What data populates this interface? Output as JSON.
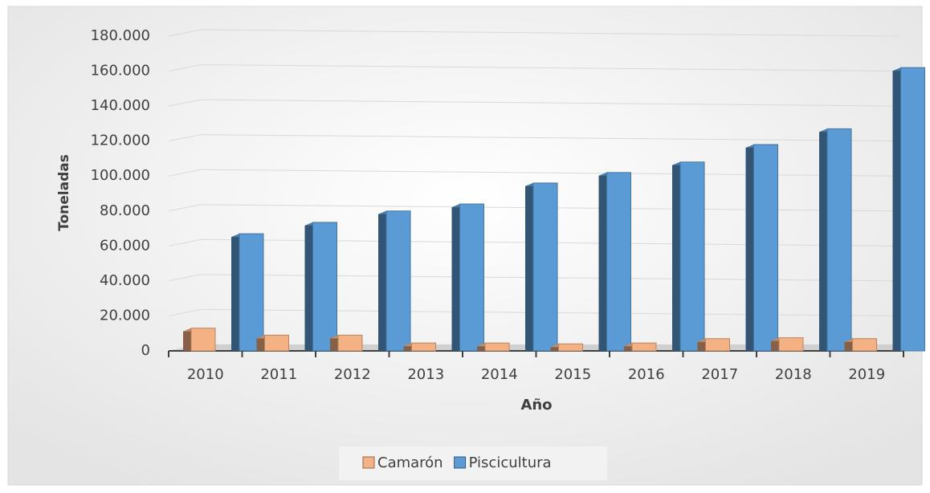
{
  "chart_data": {
    "type": "bar",
    "y_label": "Toneladas",
    "x_label": "Año",
    "categories": [
      "2010",
      "2011",
      "2012",
      "2013",
      "2014",
      "2015",
      "2016",
      "2017",
      "2018",
      "2019"
    ],
    "series": [
      {
        "name": "Camarón",
        "color": "#f4b183",
        "values": [
          13000,
          9000,
          9000,
          4500,
          4500,
          4000,
          4500,
          7000,
          7500,
          7000
        ]
      },
      {
        "name": "Piscicultura",
        "color": "#5b9bd5",
        "values": [
          67000,
          73500,
          80000,
          84000,
          96000,
          102000,
          108000,
          118000,
          127000,
          162000
        ]
      }
    ],
    "ylim": [
      0,
      180000
    ],
    "yticks": [
      0,
      {
        "value": 20000,
        "label": "20.000"
      },
      {
        "value": 40000,
        "label": "40.000"
      },
      {
        "value": 60000,
        "label": "60.000"
      },
      {
        "value": 80000,
        "label": "80.000"
      },
      {
        "value": 100000,
        "label": "100.000"
      },
      {
        "value": 120000,
        "label": "120.000"
      },
      {
        "value": 140000,
        "label": "140.000"
      },
      {
        "value": 160000,
        "label": "160.000"
      },
      {
        "value": 180000,
        "label": "180.000"
      }
    ],
    "grid": true,
    "legend": "bottom"
  }
}
